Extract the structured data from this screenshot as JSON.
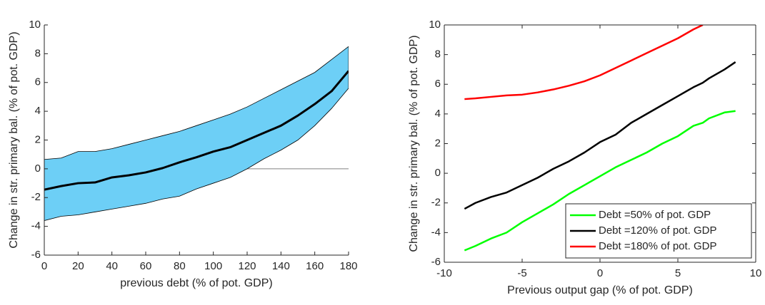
{
  "chart_data": [
    {
      "type": "band",
      "xlabel": "previous debt (% of pot. GDP)",
      "ylabel": "Change in str. primary bal. (% of pot. GDP)",
      "x": [
        0,
        10,
        20,
        30,
        40,
        50,
        60,
        70,
        80,
        90,
        100,
        110,
        120,
        130,
        140,
        150,
        160,
        170,
        180
      ],
      "series": [
        {
          "color": "#000000",
          "values": [
            -1.45,
            -1.2,
            -1.0,
            -0.95,
            -0.6,
            -0.45,
            -0.25,
            0.05,
            0.45,
            0.8,
            1.2,
            1.5,
            2.0,
            2.5,
            3.0,
            3.7,
            4.5,
            5.4,
            6.8
          ]
        }
      ],
      "band": {
        "color": "#6dcff6",
        "upper": [
          0.65,
          0.75,
          1.2,
          1.2,
          1.4,
          1.7,
          2.0,
          2.3,
          2.6,
          3.0,
          3.4,
          3.8,
          4.3,
          4.9,
          5.5,
          6.1,
          6.7,
          7.6,
          8.5
        ],
        "lower": [
          -3.6,
          -3.3,
          -3.2,
          -3.0,
          -2.8,
          -2.6,
          -2.4,
          -2.1,
          -1.9,
          -1.4,
          -1.0,
          -0.6,
          0.0,
          0.7,
          1.3,
          2.0,
          3.0,
          4.2,
          5.6
        ]
      },
      "xlim": [
        0,
        180
      ],
      "xticks": [
        0,
        20,
        40,
        60,
        80,
        100,
        120,
        140,
        160,
        180
      ],
      "ylim": [
        -6,
        10
      ],
      "yticks": [
        -6,
        -4,
        -2,
        0,
        2,
        4,
        6,
        8,
        10
      ],
      "box": false
    },
    {
      "type": "line",
      "xlabel": "Previous output gap (% of pot. GDP)",
      "ylabel": "Change in str. primary bal. (% of pot. GDP)",
      "x": [
        -8.7,
        -8,
        -7,
        -6,
        -5,
        -4,
        -3,
        -2,
        -1,
        0,
        1,
        2,
        3,
        4,
        5,
        6,
        6.6,
        7,
        8,
        8.7
      ],
      "series": [
        {
          "name": "Debt =50% of pot. GDP",
          "color": "#00ff00",
          "values": [
            -5.2,
            -4.9,
            -4.4,
            -4.0,
            -3.3,
            -2.7,
            -2.1,
            -1.4,
            -0.8,
            -0.2,
            0.4,
            0.9,
            1.4,
            2.0,
            2.5,
            3.2,
            3.4,
            3.7,
            4.1,
            4.2
          ]
        },
        {
          "name": "Debt =120% of pot. GDP",
          "color": "#000000",
          "values": [
            -2.4,
            -2.0,
            -1.6,
            -1.3,
            -0.8,
            -0.3,
            0.3,
            0.8,
            1.4,
            2.1,
            2.6,
            3.4,
            4.0,
            4.6,
            5.2,
            5.8,
            6.1,
            6.4,
            7.0,
            7.5
          ]
        },
        {
          "name": "Debt =180% of pot. GDP",
          "color": "#ff0000",
          "values": [
            5.0,
            5.05,
            5.15,
            5.25,
            5.3,
            5.45,
            5.65,
            5.9,
            6.2,
            6.6,
            7.1,
            7.6,
            8.1,
            8.6,
            9.1,
            9.7,
            10,
            null,
            null,
            null
          ]
        }
      ],
      "xlim": [
        -10,
        10
      ],
      "xticks": [
        -10,
        -5,
        0,
        5,
        10
      ],
      "ylim": [
        -6,
        10
      ],
      "yticks": [
        -6,
        -4,
        -2,
        0,
        2,
        4,
        6,
        8,
        10
      ],
      "legend": "lower right",
      "box": true
    }
  ]
}
